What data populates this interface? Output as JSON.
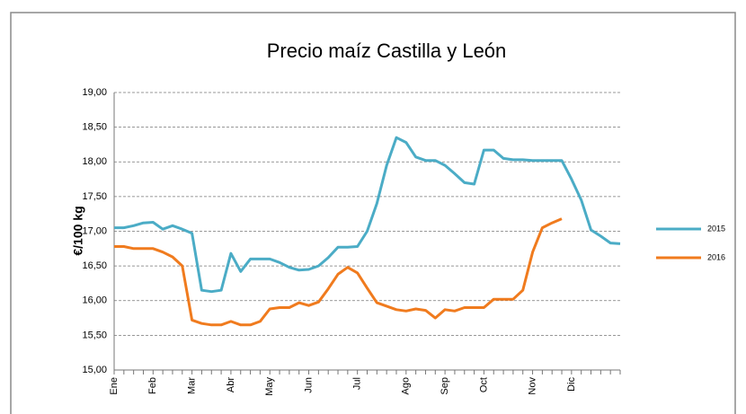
{
  "chart_data": {
    "type": "line",
    "title": "Precio maíz Castilla y León",
    "ylabel": "€/100 kg",
    "categories": [
      "Ene",
      null,
      null,
      null,
      "Feb",
      null,
      null,
      null,
      "Mar",
      null,
      null,
      null,
      "Abr",
      null,
      null,
      null,
      "May",
      null,
      null,
      null,
      "Jun",
      null,
      null,
      null,
      null,
      "Jul",
      null,
      null,
      null,
      null,
      "Ago",
      null,
      null,
      null,
      "Sep",
      null,
      null,
      null,
      "Oct",
      null,
      null,
      null,
      null,
      "Nov",
      null,
      null,
      null,
      "Dic",
      null,
      null,
      null,
      null,
      null
    ],
    "series": [
      {
        "name": "2015",
        "color": "#4bacc6",
        "values": [
          17.05,
          17.05,
          17.08,
          17.12,
          17.13,
          17.03,
          17.08,
          17.03,
          16.97,
          16.15,
          16.13,
          16.15,
          16.68,
          16.42,
          16.6,
          16.6,
          16.6,
          16.55,
          16.48,
          16.44,
          16.45,
          16.5,
          16.62,
          16.77,
          16.77,
          16.78,
          17.0,
          17.4,
          17.95,
          18.35,
          18.28,
          18.07,
          18.02,
          18.02,
          17.95,
          17.83,
          17.7,
          17.68,
          18.17,
          18.17,
          18.05,
          18.03,
          18.03,
          18.02,
          18.02,
          18.02,
          18.02,
          17.75,
          17.45,
          17.02,
          16.93,
          16.83,
          16.82
        ]
      },
      {
        "name": "2016",
        "color": "#f07b1e",
        "values": [
          16.78,
          16.78,
          16.75,
          16.75,
          16.75,
          16.7,
          16.63,
          16.5,
          15.72,
          15.67,
          15.65,
          15.65,
          15.7,
          15.65,
          15.65,
          15.7,
          15.88,
          15.9,
          15.9,
          15.97,
          15.93,
          15.98,
          16.17,
          16.38,
          16.48,
          16.4,
          16.18,
          15.97,
          15.92,
          15.87,
          15.85,
          15.88,
          15.86,
          15.75,
          15.87,
          15.85,
          15.9,
          15.9,
          15.9,
          16.02,
          16.02,
          16.02,
          16.15,
          16.7,
          17.05,
          17.12,
          17.18,
          null,
          null,
          null,
          null,
          null,
          null
        ]
      }
    ],
    "ylim": [
      15,
      19
    ],
    "yticks": [
      {
        "value": 15,
        "label": "15,00"
      },
      {
        "value": 15.5,
        "label": "15,50"
      },
      {
        "value": 16,
        "label": "16,00"
      },
      {
        "value": 16.5,
        "label": "16,50"
      },
      {
        "value": 17,
        "label": "17,00"
      },
      {
        "value": 17.5,
        "label": "17,50"
      },
      {
        "value": 18,
        "label": "18,00"
      },
      {
        "value": 18.5,
        "label": "18,50"
      },
      {
        "value": 19,
        "label": "19,00"
      }
    ],
    "grid": true,
    "legend": "right"
  }
}
